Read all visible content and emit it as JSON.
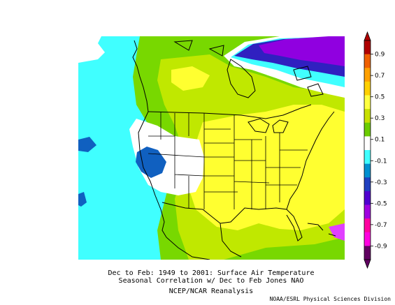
{
  "caption": {
    "line1": "Dec to Feb: 1949 to 2001: Surface Air Temperature",
    "line2": "Seasonal Correlation w/ Dec to Feb Jones NAO",
    "line3": "NCEP/NCAR Reanalysis"
  },
  "credit": "NOAA/ESRL Physical Sciences Division",
  "colorbar": {
    "ticks": [
      "0.9",
      "0.7",
      "0.5",
      "0.3",
      "0.1",
      "-0.1",
      "-0.3",
      "-0.5",
      "-0.7",
      "-0.9"
    ],
    "colors": [
      "#b00000",
      "#f06000",
      "#ffa000",
      "#ffd000",
      "#ffff40",
      "#c8e000",
      "#6ccc00",
      "#ffffff",
      "#40ffff",
      "#0090d0",
      "#2040c0",
      "#5000d0",
      "#a000e0",
      "#ff00a0",
      "#ff00e0",
      "#600060"
    ],
    "min": -0.9,
    "max": 0.9
  },
  "colors": {
    "white_band": "#ffffff",
    "cyan": "#40ffff",
    "blue": "#1060c0",
    "green": "#78d800",
    "lightgreen": "#c0e800",
    "yellow": "#ffff30",
    "purple": "#9000e0",
    "violet": "#3020c0"
  }
}
